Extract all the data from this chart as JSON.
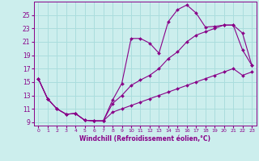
{
  "xlabel": "Windchill (Refroidissement éolien,°C)",
  "background_color": "#cceeed",
  "grid_color": "#aadddd",
  "line_color": "#880088",
  "hours": [
    0,
    1,
    2,
    3,
    4,
    5,
    6,
    7,
    8,
    9,
    10,
    11,
    12,
    13,
    14,
    15,
    16,
    17,
    18,
    19,
    20,
    21,
    22,
    23
  ],
  "line1": [
    15.5,
    12.5,
    11.0,
    10.2,
    10.3,
    9.3,
    9.2,
    9.2,
    12.3,
    14.8,
    21.5,
    21.5,
    20.8,
    19.3,
    24.0,
    25.8,
    26.5,
    25.3,
    23.2,
    23.3,
    23.5,
    23.5,
    19.8,
    17.5
  ],
  "line2": [
    15.5,
    12.5,
    11.0,
    10.2,
    10.3,
    9.3,
    9.2,
    9.2,
    11.8,
    13.0,
    14.5,
    15.3,
    16.0,
    17.0,
    18.5,
    19.5,
    21.0,
    22.0,
    22.5,
    23.0,
    23.5,
    23.5,
    22.3,
    17.5
  ],
  "line3": [
    15.5,
    12.5,
    11.0,
    10.2,
    10.3,
    9.3,
    9.2,
    9.2,
    10.5,
    11.0,
    11.5,
    12.0,
    12.5,
    13.0,
    13.5,
    14.0,
    14.5,
    15.0,
    15.5,
    16.0,
    16.5,
    17.0,
    16.0,
    16.5
  ],
  "ylim": [
    8.5,
    27
  ],
  "yticks": [
    9,
    11,
    13,
    15,
    17,
    19,
    21,
    23,
    25
  ],
  "xlim": [
    -0.5,
    23.5
  ]
}
